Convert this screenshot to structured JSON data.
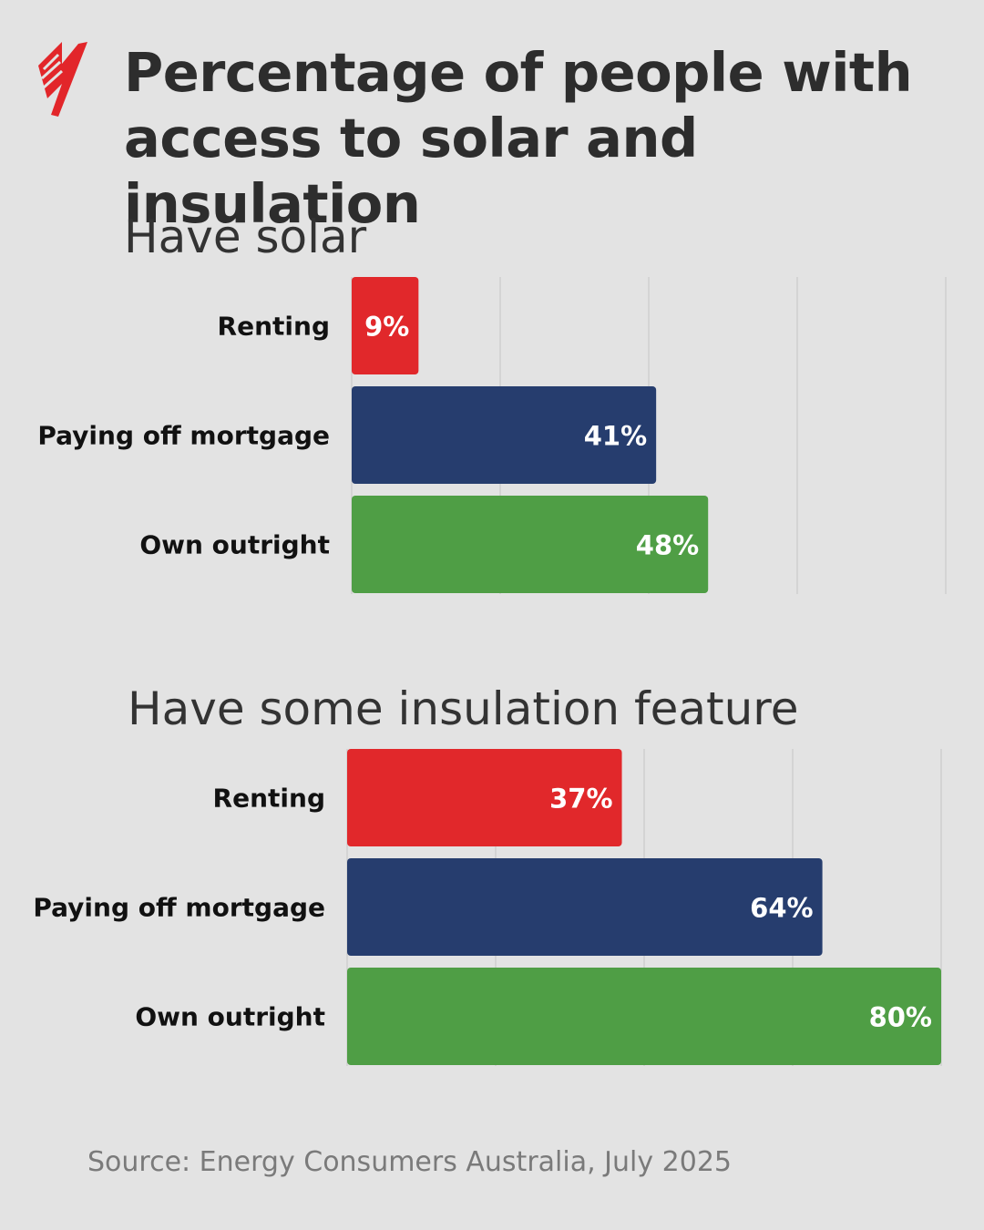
{
  "title": "Percentage of people with access to solar and insulation",
  "source": "Source: Energy Consumers Australia, July 2025",
  "logo": {
    "icon": "sbs-logo-icon",
    "color": "#e2262a"
  },
  "colors": {
    "renting": "#e1282b",
    "mortgage": "#263d6e",
    "outright": "#4f9e45",
    "grid": "#cfcfcf"
  },
  "chart_data": [
    {
      "type": "bar",
      "orientation": "horizontal",
      "title": "Have solar",
      "categories": [
        "Renting",
        "Paying off mortgage",
        "Own outright"
      ],
      "values": [
        9,
        41,
        48
      ],
      "value_labels": [
        "9%",
        "41%",
        "48%"
      ],
      "xlim": [
        0,
        80
      ],
      "grid": true
    },
    {
      "type": "bar",
      "orientation": "horizontal",
      "title": "Have some insulation feature",
      "categories": [
        "Renting",
        "Paying off mortgage",
        "Own outright"
      ],
      "values": [
        37,
        64,
        80
      ],
      "value_labels": [
        "37%",
        "64%",
        "80%"
      ],
      "xlim": [
        0,
        80
      ],
      "grid": true
    }
  ]
}
